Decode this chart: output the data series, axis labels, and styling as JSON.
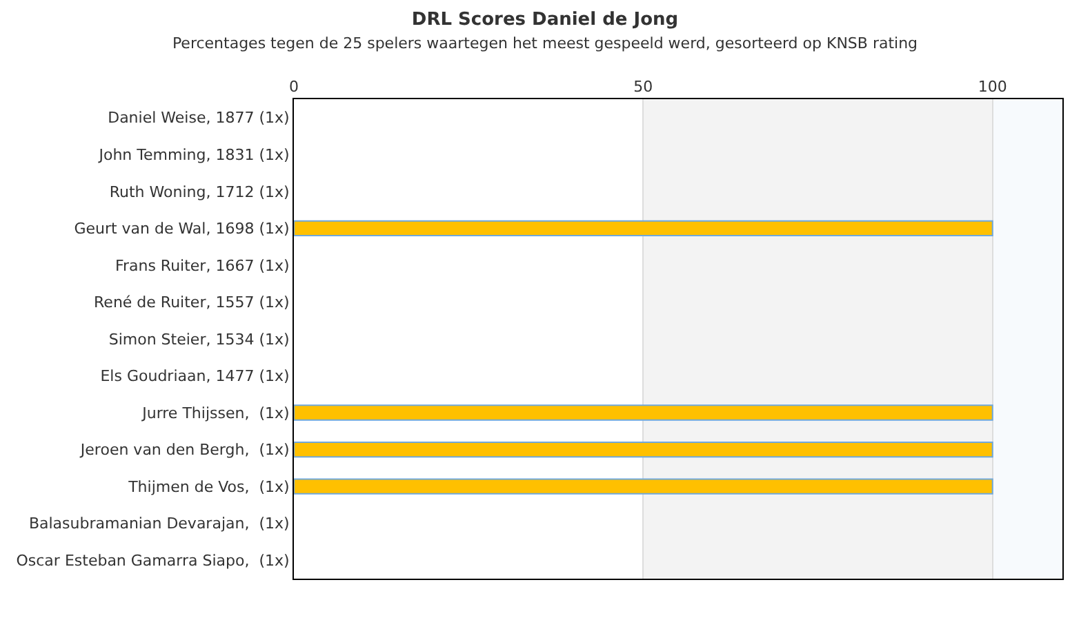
{
  "chart_data": {
    "type": "bar",
    "orientation": "horizontal",
    "title": "DRL Scores Daniel de Jong",
    "subtitle": "Percentages tegen de 25 spelers waartegen het meest gespeeld werd, gesorteerd op KNSB rating",
    "categories": [
      "Daniel Weise, 1877 (1x)",
      "John Temming, 1831 (1x)",
      "Ruth Woning, 1712 (1x)",
      "Geurt van de Wal, 1698 (1x)",
      "Frans Ruiter, 1667 (1x)",
      "René de Ruiter, 1557 (1x)",
      "Simon Steier, 1534 (1x)",
      "Els Goudriaan, 1477 (1x)",
      "Jurre Thijssen,  (1x)",
      "Jeroen van den Bergh,  (1x)",
      "Thijmen de Vos,  (1x)",
      "Balasubramanian Devarajan,  (1x)",
      "Oscar Esteban Gamarra Siapo,  (1x)"
    ],
    "values": [
      0,
      0,
      0,
      100,
      0,
      0,
      0,
      0,
      100,
      100,
      100,
      0,
      0
    ],
    "color": "#ffc000",
    "xlim": [
      0,
      110
    ],
    "xticks": [
      0,
      50,
      100
    ],
    "grid": "x",
    "bands": [
      {
        "axis": "x",
        "from": 50,
        "to": 100,
        "color": "#f3f3f3"
      },
      {
        "axis": "x",
        "from": 100,
        "to": 110,
        "color": "#f7fafd"
      }
    ]
  }
}
